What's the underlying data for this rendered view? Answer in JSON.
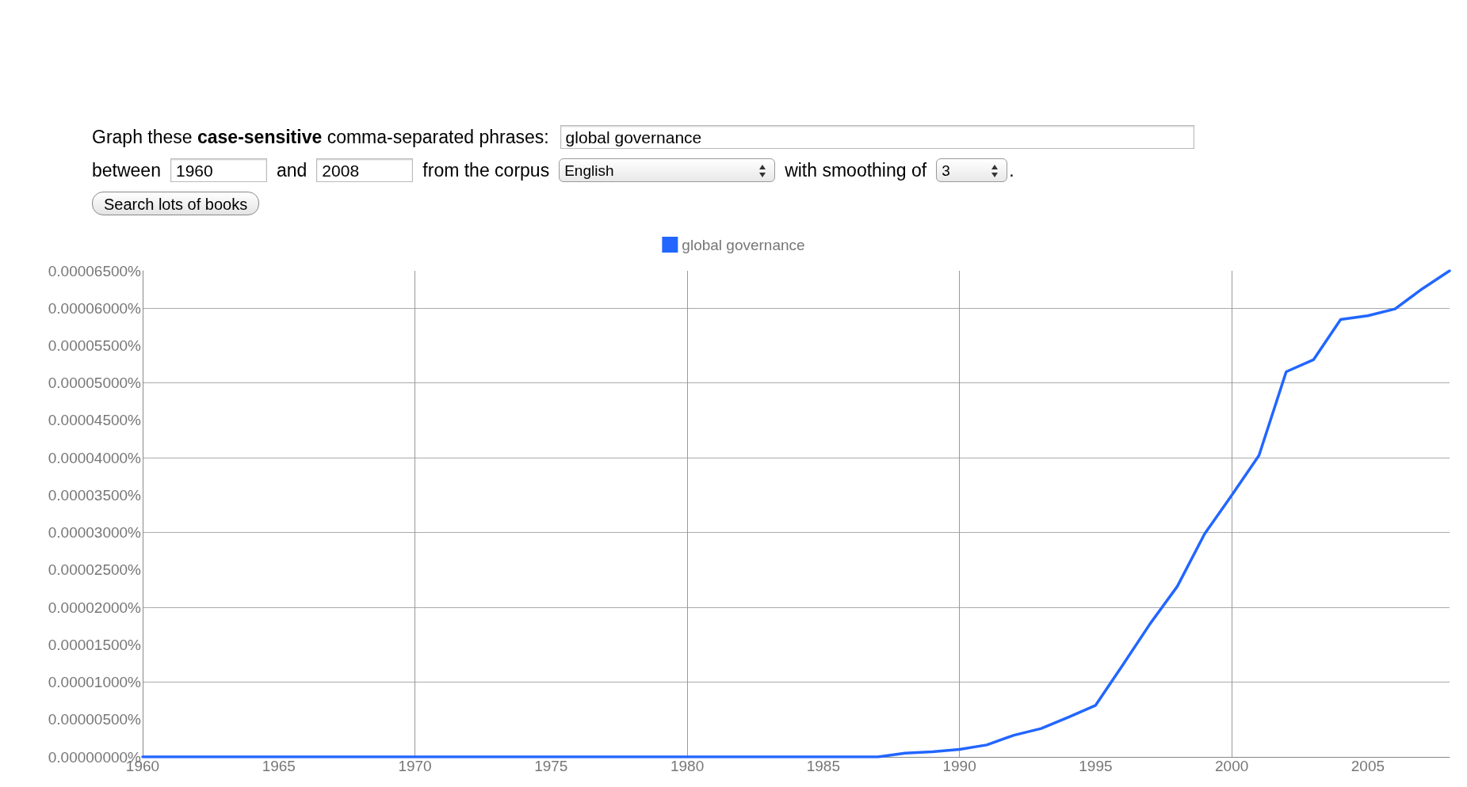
{
  "chart_data": {
    "type": "line",
    "annotations": [
      "Graph these ",
      "case-sensitive",
      " comma-separated phrases:",
      "global governance",
      "between",
      "1960",
      "and",
      "2008",
      "from the corpus",
      "English",
      "with smoothing of",
      "3",
      ".",
      "Search lots of books"
    ],
    "x": [
      1960,
      1961,
      1962,
      1963,
      1964,
      1965,
      1966,
      1967,
      1968,
      1969,
      1970,
      1971,
      1972,
      1973,
      1974,
      1975,
      1976,
      1977,
      1978,
      1979,
      1980,
      1981,
      1982,
      1983,
      1984,
      1985,
      1986,
      1987,
      1988,
      1989,
      1990,
      1991,
      1992,
      1993,
      1994,
      1995,
      1996,
      1997,
      1998,
      1999,
      2000,
      2001,
      2002,
      2003,
      2004,
      2005,
      2006,
      2007,
      2008
    ],
    "series": [
      {
        "name": "global governance",
        "color": "#2266ff",
        "values": [
          0,
          0,
          0,
          0,
          0,
          0,
          0,
          0,
          0,
          0,
          0,
          0,
          0,
          0,
          0,
          0,
          0,
          0,
          0,
          0,
          0,
          0,
          0,
          0,
          0,
          0,
          0,
          0,
          5e-07,
          7e-07,
          1e-06,
          1.6e-06,
          2.9e-06,
          3.8e-06,
          5.3e-06,
          6.9e-06,
          1.23e-05,
          1.78e-05,
          2.28e-05,
          2.98e-05,
          3.5e-05,
          4.03e-05,
          5.15e-05,
          5.31e-05,
          5.85e-05,
          5.9e-05,
          5.99e-05,
          6.26e-05,
          6.5e-05
        ]
      }
    ],
    "xlim": [
      1960,
      2008
    ],
    "xticks": [
      1960,
      1965,
      1970,
      1975,
      1980,
      1985,
      1990,
      1995,
      2000,
      2005
    ],
    "ylim": [
      0,
      6.5e-05
    ],
    "yticks": [
      {
        "value": 0,
        "label": "0.00000000%"
      },
      {
        "value": 5e-06,
        "label": "0.00000500%"
      },
      {
        "value": 1e-05,
        "label": "0.00001000%"
      },
      {
        "value": 1.5e-05,
        "label": "0.00001500%"
      },
      {
        "value": 2e-05,
        "label": "0.00002000%"
      },
      {
        "value": 2.5e-05,
        "label": "0.00002500%"
      },
      {
        "value": 3e-05,
        "label": "0.00003000%"
      },
      {
        "value": 3.5e-05,
        "label": "0.00003500%"
      },
      {
        "value": 4e-05,
        "label": "0.00004000%"
      },
      {
        "value": 4.5e-05,
        "label": "0.00004500%"
      },
      {
        "value": 5e-05,
        "label": "0.00005000%"
      },
      {
        "value": 5.5e-05,
        "label": "0.00005500%"
      },
      {
        "value": 6e-05,
        "label": "0.00006000%"
      },
      {
        "value": 6.5e-05,
        "label": "0.00006500%"
      }
    ],
    "grid": true,
    "legend": "top",
    "marker": "none",
    "line_style": "solid"
  }
}
